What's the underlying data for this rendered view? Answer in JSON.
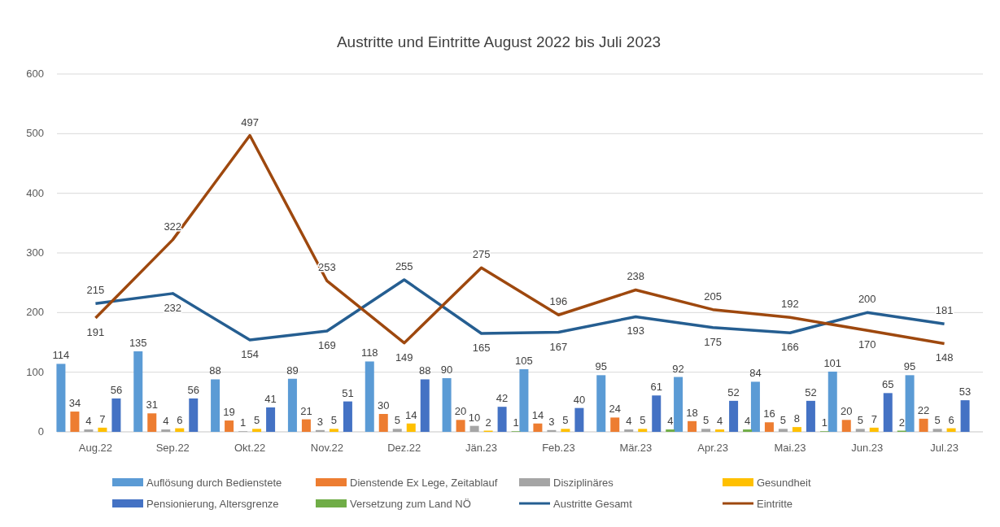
{
  "chart_data": {
    "type": "bar",
    "title": "Austritte und Eintritte August 2022 bis Juli 2023",
    "categories": [
      "Aug.22",
      "Sep.22",
      "Okt.22",
      "Nov.22",
      "Dez.22",
      "Jän.23",
      "Feb.23",
      "Mär.23",
      "Apr.23",
      "Mai.23",
      "Jun.23",
      "Jul.23"
    ],
    "series": [
      {
        "name": "Auflösung durch Bedienstete",
        "color": "#5b9bd5",
        "values": [
          114,
          135,
          88,
          89,
          118,
          90,
          105,
          95,
          92,
          84,
          101,
          95
        ]
      },
      {
        "name": "Dienstende Ex Lege, Zeitablauf",
        "color": "#ed7d31",
        "values": [
          34,
          31,
          19,
          21,
          30,
          20,
          14,
          24,
          18,
          16,
          20,
          22
        ]
      },
      {
        "name": "Disziplinäres",
        "color": "#a5a5a5",
        "values": [
          4,
          4,
          1,
          3,
          5,
          10,
          3,
          4,
          5,
          5,
          5,
          5
        ]
      },
      {
        "name": "Gesundheit",
        "color": "#ffc000",
        "values": [
          7,
          6,
          5,
          5,
          14,
          2,
          5,
          5,
          4,
          8,
          7,
          6
        ]
      },
      {
        "name": "Pensionierung, Altersgrenze",
        "color": "#4472c4",
        "values": [
          56,
          56,
          41,
          51,
          88,
          42,
          40,
          61,
          52,
          52,
          65,
          53
        ]
      },
      {
        "name": "Versetzung zum Land NÖ",
        "color": "#70ad47",
        "values": [
          null,
          null,
          null,
          null,
          null,
          1,
          null,
          4,
          4,
          1,
          2,
          null
        ]
      },
      {
        "name": "Austritte Gesamt",
        "type": "line",
        "color": "#255e91",
        "values": [
          215,
          232,
          154,
          169,
          255,
          165,
          167,
          193,
          175,
          166,
          200,
          181
        ]
      },
      {
        "name": "Eintritte",
        "type": "line",
        "color": "#9e480e",
        "values": [
          191,
          322,
          497,
          253,
          149,
          275,
          196,
          238,
          205,
          192,
          170,
          148
        ]
      }
    ],
    "ylim": [
      0,
      600
    ],
    "yticks": [
      0,
      100,
      200,
      300,
      400,
      500,
      600
    ],
    "grid": "y",
    "legend": "bottom",
    "data_labels": true,
    "marker": "none"
  }
}
